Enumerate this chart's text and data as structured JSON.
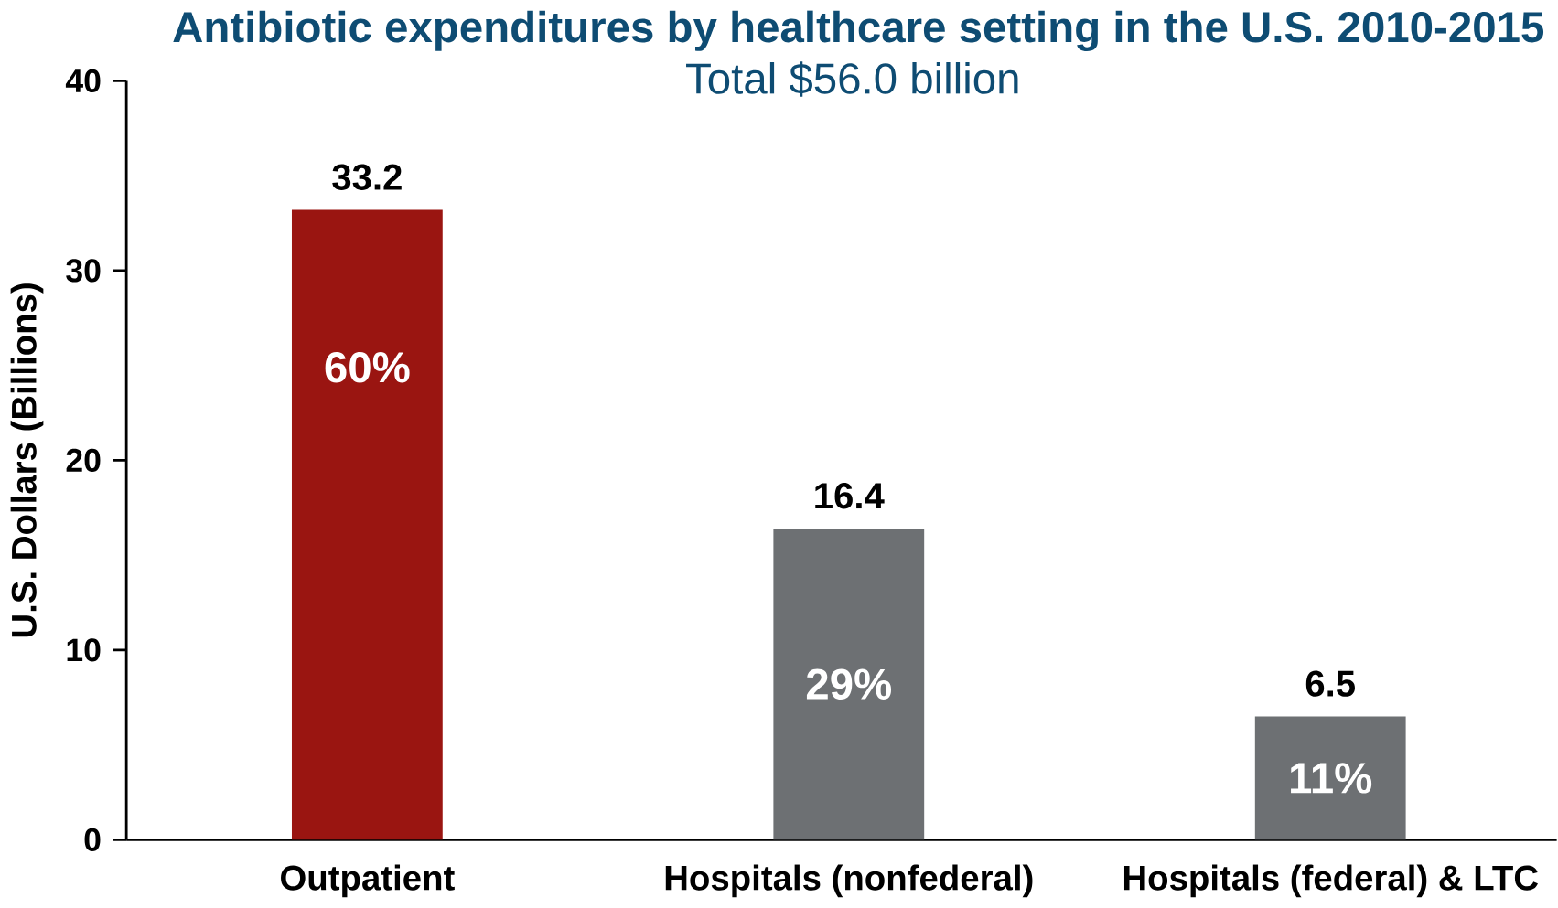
{
  "chart_data": {
    "type": "bar",
    "title": "Antibiotic expenditures by healthcare setting in the U.S. 2010-2015",
    "subtitle": "Total $56.0 billion",
    "ylabel": "U.S. Dollars (Billions)",
    "categories": [
      "Outpatient",
      "Hospitals (nonfederal)",
      "Hospitals (federal) & LTC"
    ],
    "values": [
      33.2,
      16.4,
      6.5
    ],
    "colors": [
      "#9a1511",
      "#6d7073",
      "#6d7073"
    ],
    "ylim": [
      0,
      40
    ],
    "yticks": [
      0,
      10,
      20,
      30,
      40
    ],
    "grid": false,
    "data_labels": true,
    "annotations": [
      "60%",
      "29%",
      "11%"
    ]
  }
}
